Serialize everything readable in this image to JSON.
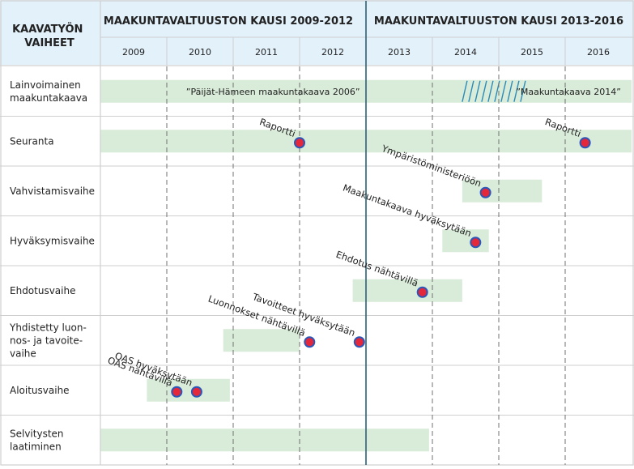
{
  "header": {
    "stage_label_line1": "KAAVATYÖN",
    "stage_label_line2": "VAIHEET",
    "period_1": "MAAKUNTAVALTUUSTON KAUSI 2009-2012",
    "period_2": "MAAKUNTAVALTUUSTON KAUSI 2013-2016"
  },
  "years": [
    "2009",
    "2010",
    "2011",
    "2012",
    "2013",
    "2014",
    "2015",
    "2016"
  ],
  "rows": [
    {
      "id": "lainvoimainen",
      "lines": [
        "Lainvoimainen",
        "maakuntakaava"
      ]
    },
    {
      "id": "seuranta",
      "lines": [
        "Seuranta"
      ]
    },
    {
      "id": "vahvistamisvaihe",
      "lines": [
        "Vahvistamisvaihe"
      ]
    },
    {
      "id": "hyvaksymisvaihe",
      "lines": [
        "Hyväksymisvaihe"
      ]
    },
    {
      "id": "ehdotusvaihe",
      "lines": [
        "Ehdotusvaihe"
      ]
    },
    {
      "id": "yhdistetty",
      "lines": [
        "Yhdistetty luon-",
        "nos- ja tavoite-",
        "vaihe"
      ]
    },
    {
      "id": "aloitusvaihe",
      "lines": [
        "Aloitusvaihe"
      ]
    },
    {
      "id": "selvitysten",
      "lines": [
        "Selvitysten",
        "laatiminen"
      ]
    }
  ],
  "bars": [
    {
      "row": 0,
      "start": 2009.0,
      "end": 2017.0
    },
    {
      "row": 1,
      "start": 2009.0,
      "end": 2017.0
    },
    {
      "row": 2,
      "start": 2014.45,
      "end": 2015.65
    },
    {
      "row": 3,
      "start": 2014.15,
      "end": 2014.85
    },
    {
      "row": 4,
      "start": 2012.8,
      "end": 2014.45
    },
    {
      "row": 5,
      "start": 2010.85,
      "end": 2012.0
    },
    {
      "row": 6,
      "start": 2009.7,
      "end": 2010.95
    },
    {
      "row": 7,
      "start": 2009.0,
      "end": 2013.95
    }
  ],
  "hatch": {
    "row": 0,
    "start": 2014.45,
    "end": 2015.45
  },
  "plan_labels": [
    {
      "row": 0,
      "text": "”Päijät-Hämeen maakuntakaava 2006”",
      "at": 2011.6
    },
    {
      "row": 0,
      "text": "”Maakuntakaava 2014”",
      "at": 2016.05
    }
  ],
  "milestones": [
    {
      "row": 1,
      "at": 2012.0,
      "label": "Raportti"
    },
    {
      "row": 1,
      "at": 2016.3,
      "label": "Raportti"
    },
    {
      "row": 2,
      "at": 2014.8,
      "label": "Ympäristöministeriöön"
    },
    {
      "row": 3,
      "at": 2014.65,
      "label": "Maakuntakaava hyväksytään"
    },
    {
      "row": 4,
      "at": 2013.85,
      "label": "Ehdotus nähtävillä"
    },
    {
      "row": 5,
      "at": 2012.9,
      "label": "Tavoitteet hyväksytään"
    },
    {
      "row": 5,
      "at": 2012.15,
      "label": "Luonnokset nähtävillä"
    },
    {
      "row": 6,
      "at": 2010.45,
      "label": "OAS hyväksytään"
    },
    {
      "row": 6,
      "at": 2010.15,
      "label": "OAS nähtävillä"
    }
  ],
  "colors": {
    "header_bg": "#e3f1fb",
    "bar": "#d9ecd9",
    "grid": "#cfcfcf",
    "dash": "#707070",
    "divider": "#2a6078",
    "milestone_fill": "#e2283a",
    "milestone_ring": "#2c56b8",
    "hatch": "#2a8ab8"
  }
}
